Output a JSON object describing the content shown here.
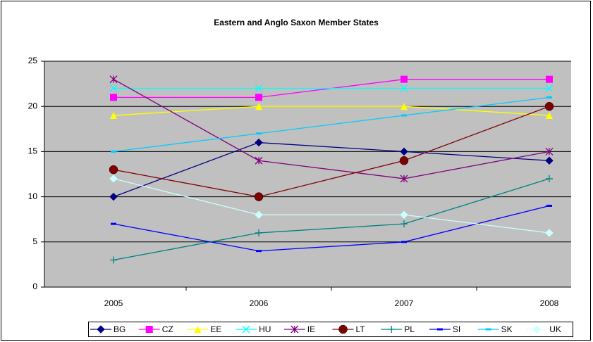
{
  "chart_data": {
    "type": "line",
    "title": "Eastern and Anglo Saxon Member States",
    "categories": [
      "2005",
      "2006",
      "2007",
      "2008"
    ],
    "series": [
      {
        "name": "BG",
        "color": "#000080",
        "marker": "diamond",
        "values": [
          10,
          16,
          15,
          14
        ]
      },
      {
        "name": "CZ",
        "color": "#FF00FF",
        "marker": "square",
        "values": [
          21,
          21,
          23,
          23
        ]
      },
      {
        "name": "EE",
        "color": "#FFFF00",
        "marker": "triangle",
        "values": [
          19,
          20,
          20,
          19
        ]
      },
      {
        "name": "HU",
        "color": "#00FFFF",
        "marker": "x",
        "values": [
          22,
          22,
          22,
          22
        ]
      },
      {
        "name": "IE",
        "color": "#800080",
        "marker": "star",
        "values": [
          23,
          14,
          12,
          15
        ]
      },
      {
        "name": "LT",
        "color": "#800000",
        "marker": "circle",
        "values": [
          13,
          10,
          14,
          20
        ]
      },
      {
        "name": "PL",
        "color": "#008080",
        "marker": "plus",
        "values": [
          3,
          6,
          7,
          12
        ]
      },
      {
        "name": "SI",
        "color": "#0000FF",
        "marker": "dash",
        "values": [
          7,
          4,
          5,
          9
        ]
      },
      {
        "name": "SK",
        "color": "#00CCFF",
        "marker": "dash",
        "values": [
          15,
          17,
          19,
          21
        ]
      },
      {
        "name": "UK",
        "color": "#CCFFFF",
        "marker": "diamond",
        "values": [
          12,
          8,
          8,
          6
        ]
      }
    ],
    "ylim": [
      0,
      25
    ],
    "yticks": [
      0,
      5,
      10,
      15,
      20,
      25
    ],
    "grid": true,
    "legend": "bottom"
  }
}
